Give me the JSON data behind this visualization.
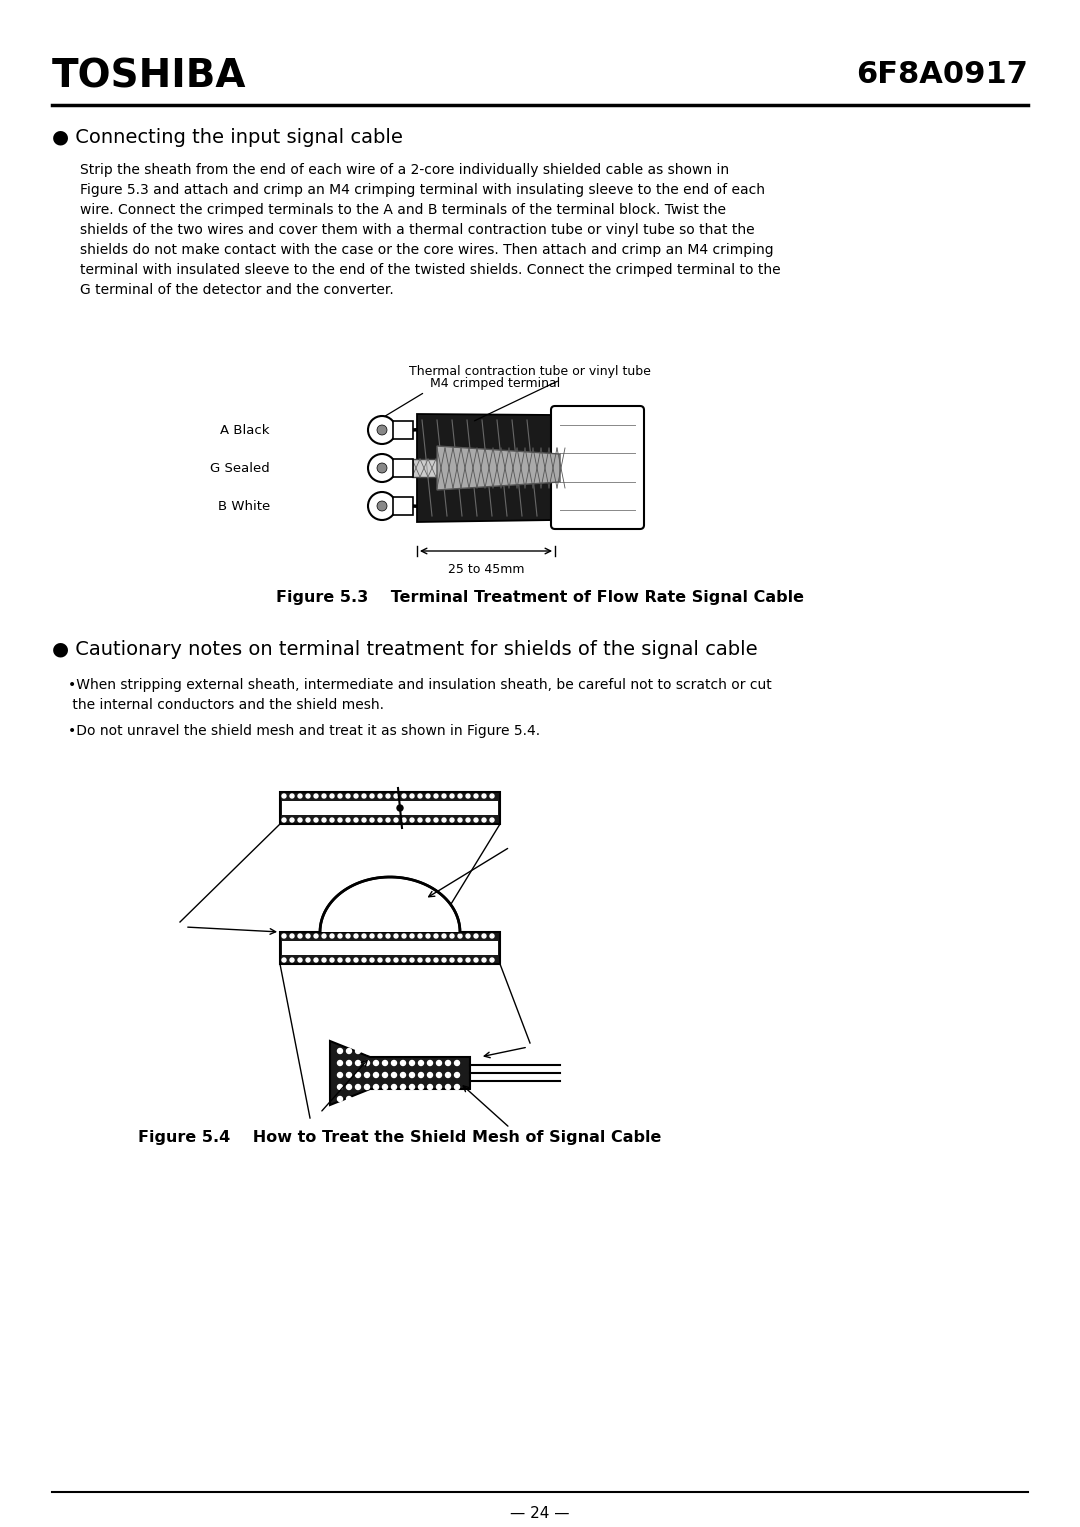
{
  "title_left": "TOSHIBA",
  "title_right": "6F8A0917",
  "page_number": "— 24 —",
  "section1_bullet": "● Connecting the input signal cable",
  "section1_body": "Strip the sheath from the end of each wire of a 2-core individually shielded cable as shown in\nFigure 5.3 and attach and crimp an M4 crimping terminal with insulating sleeve to the end of each\nwire. Connect the crimped terminals to the A and B terminals of the terminal block. Twist the\nshields of the two wires and cover them with a thermal contraction tube or vinyl tube so that the\nshields do not make contact with the case or the core wires. Then attach and crimp an M4 crimping\nterminal with insulated sleeve to the end of the twisted shields. Connect the crimped terminal to the\nG terminal of the detector and the converter.",
  "fig3_caption": "Figure 5.3    Terminal Treatment of Flow Rate Signal Cable",
  "fig3_label_thermal": "Thermal contraction tube or vinyl tube",
  "fig3_label_m4": "M4 crimped terminal",
  "fig3_label_a": "A Black",
  "fig3_label_g": "G Sealed",
  "fig3_label_b": "B White",
  "fig3_label_25": "25 to 45mm",
  "section2_bullet": "● Cautionary notes on terminal treatment for shields of the signal cable",
  "section2_point1": "•When stripping external sheath, intermediate and insulation sheath, be careful not to scratch or cut\n the internal conductors and the shield mesh.",
  "section2_point2": "•Do not unravel the shield mesh and treat it as shown in Figure 5.4.",
  "fig4_caption": "Figure 5.4    How to Treat the Shield Mesh of Signal Cable",
  "bg_color": "#ffffff",
  "text_color": "#000000",
  "line_color": "#000000"
}
